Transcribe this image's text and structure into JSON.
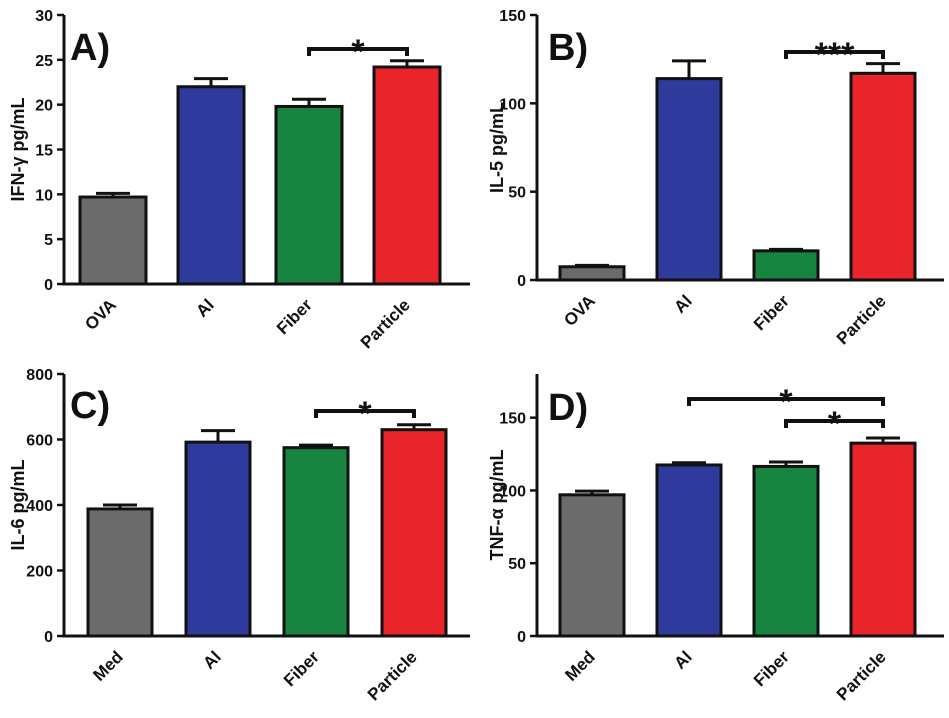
{
  "chart_data": [
    {
      "type": "bar",
      "panel_label": "A)",
      "ylabel": "IFN-γ pg/mL",
      "ylim": [
        0,
        30
      ],
      "yticks": [
        "0",
        "5",
        "10",
        "15",
        "20",
        "25",
        "30"
      ],
      "categories": [
        "OVA",
        "Al",
        "Fiber",
        "Particle"
      ],
      "values": [
        9.7,
        22.0,
        19.8,
        24.2
      ],
      "errors": [
        0.4,
        0.9,
        0.8,
        0.7
      ],
      "colors": [
        "#6b6b6b",
        "#2e3a9c",
        "#17853f",
        "#e8252b"
      ],
      "significance": [
        {
          "from": 2,
          "to": 3,
          "label": "*"
        }
      ]
    },
    {
      "type": "bar",
      "panel_label": "B)",
      "ylabel": "IL-5 pg/mL",
      "ylim": [
        0,
        150
      ],
      "yticks": [
        "0",
        "50",
        "100",
        "150"
      ],
      "categories": [
        "OVA",
        "Al",
        "Fiber",
        "Particle"
      ],
      "values": [
        7.5,
        114,
        16.5,
        117
      ],
      "errors": [
        0.8,
        10,
        0.8,
        5.5
      ],
      "colors": [
        "#6b6b6b",
        "#2e3a9c",
        "#17853f",
        "#e8252b"
      ],
      "significance": [
        {
          "from": 2,
          "to": 3,
          "label": "***"
        }
      ]
    },
    {
      "type": "bar",
      "panel_label": "C)",
      "ylabel": "IL-6 pg/mL",
      "ylim": [
        0,
        800
      ],
      "yticks": [
        "0",
        "200",
        "400",
        "600",
        "800"
      ],
      "categories": [
        "Med",
        "Al",
        "Fiber",
        "Particle"
      ],
      "values": [
        388,
        592,
        575,
        630
      ],
      "errors": [
        12,
        35,
        8,
        15
      ],
      "colors": [
        "#6b6b6b",
        "#2e3a9c",
        "#17853f",
        "#e8252b"
      ],
      "significance": [
        {
          "from": 2,
          "to": 3,
          "label": "*"
        }
      ]
    },
    {
      "type": "bar",
      "panel_label": "D)",
      "ylabel": "TNF-α pg/mL",
      "ylim": [
        0,
        180
      ],
      "yticks": [
        "0",
        "50",
        "100",
        "150"
      ],
      "categories": [
        "Med",
        "Al",
        "Fiber",
        "Particle"
      ],
      "values": [
        97,
        117.5,
        116.5,
        132.5
      ],
      "errors": [
        2.5,
        1.5,
        3,
        3.5
      ],
      "colors": [
        "#6b6b6b",
        "#2e3a9c",
        "#17853f",
        "#e8252b"
      ],
      "significance": [
        {
          "from": 1,
          "to": 3,
          "label": "*"
        },
        {
          "from": 2,
          "to": 3,
          "label": "*"
        }
      ]
    }
  ]
}
